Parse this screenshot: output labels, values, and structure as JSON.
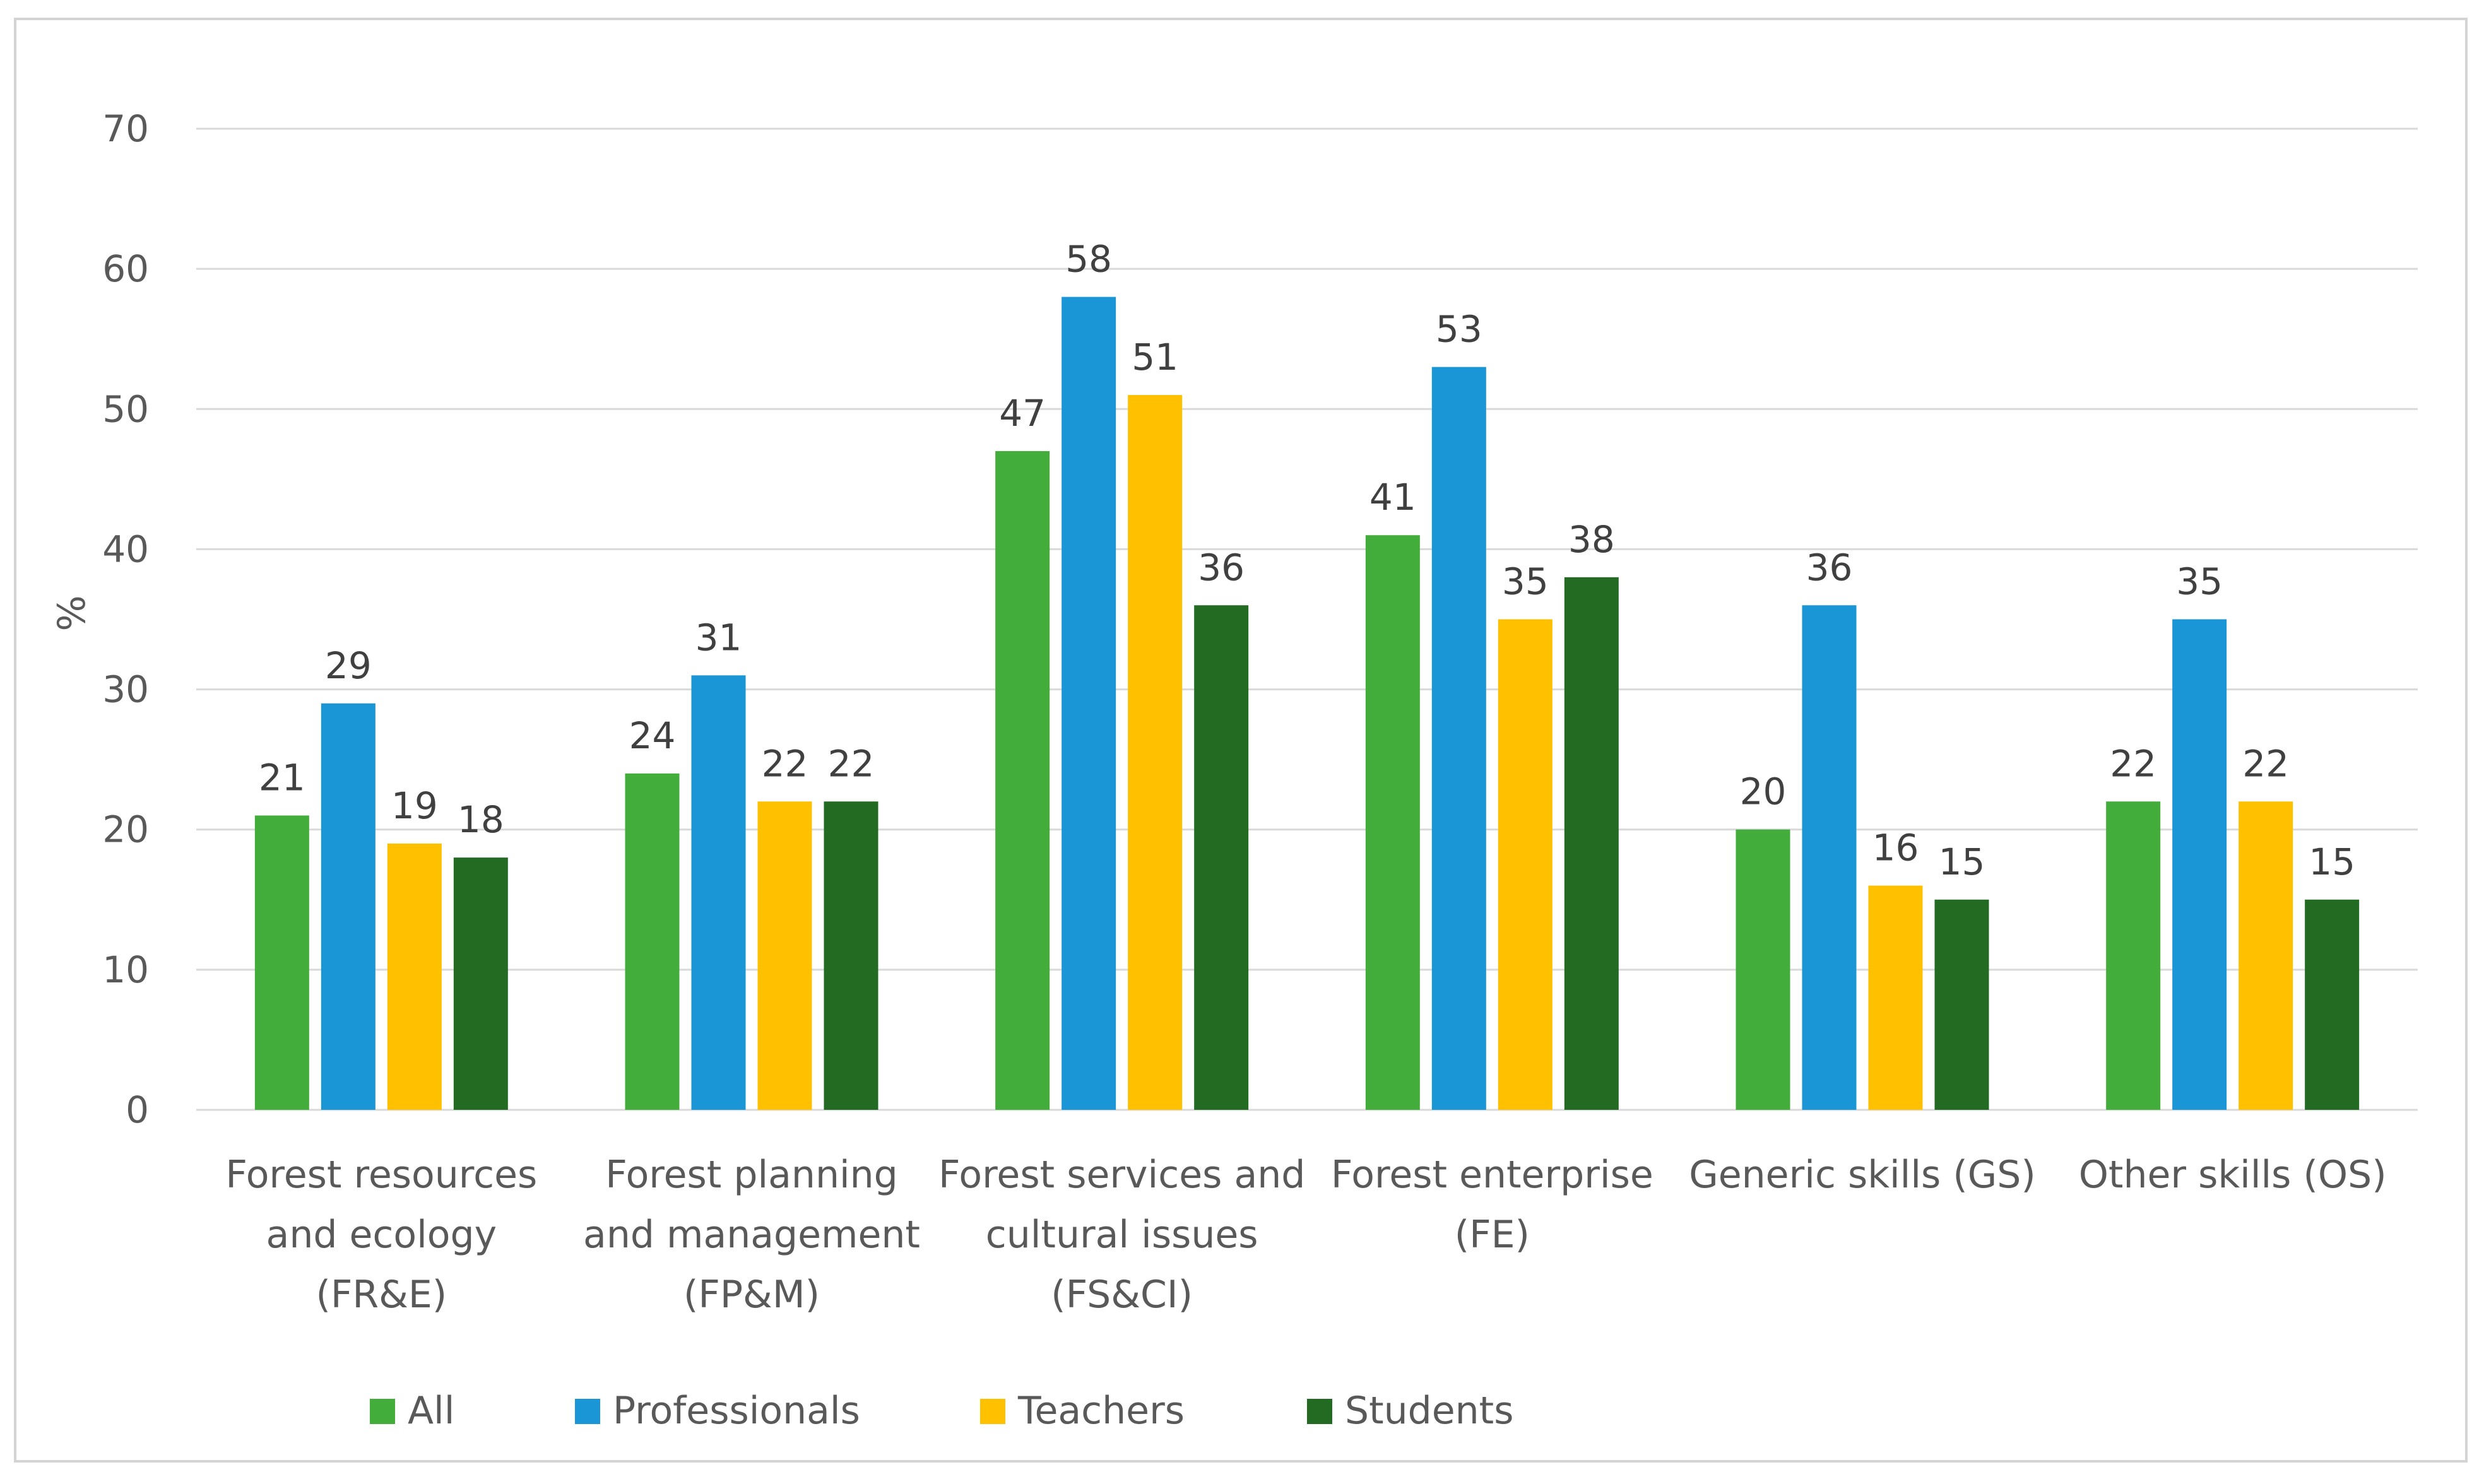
{
  "chart_data": {
    "type": "bar",
    "title": "",
    "xlabel": "",
    "ylabel": "%",
    "ylim": [
      0,
      70
    ],
    "yticks": [
      0,
      10,
      20,
      30,
      40,
      50,
      60,
      70
    ],
    "grid": true,
    "legend_position": "bottom",
    "categories": [
      [
        "Forest resources",
        "and ecology",
        "(FR&E)"
      ],
      [
        "Forest planning",
        "and management",
        "(FP&M)"
      ],
      [
        "Forest services and",
        "cultural issues",
        "(FS&CI)"
      ],
      [
        "Forest enterprise",
        "(FE)"
      ],
      [
        "Generic skills (GS)"
      ],
      [
        "Other skills (OS)"
      ]
    ],
    "series": [
      {
        "name": "All",
        "color": "#43ad3b",
        "values": [
          21,
          24,
          47,
          41,
          20,
          22
        ]
      },
      {
        "name": "Professionals",
        "color": "#1a96d6",
        "values": [
          29,
          31,
          58,
          53,
          36,
          35
        ]
      },
      {
        "name": "Teachers",
        "color": "#ffc000",
        "values": [
          19,
          22,
          51,
          35,
          16,
          22
        ]
      },
      {
        "name": "Students",
        "color": "#236a22",
        "values": [
          18,
          22,
          36,
          38,
          15,
          15
        ]
      }
    ],
    "colors": {
      "grid": "#d9d9d9",
      "axis": "#d9d9d9",
      "text": "#595959"
    }
  }
}
